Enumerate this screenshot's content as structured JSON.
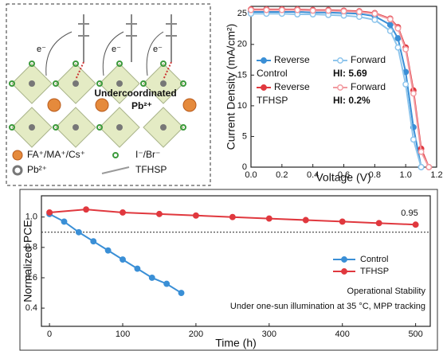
{
  "diagram": {
    "electron_labels": [
      "e⁻",
      "e⁻",
      "e⁻"
    ],
    "callout": "Undercoordinated",
    "callout_ion": "Pb²⁺",
    "legend": [
      "FA⁺/MA⁺/Cs⁺",
      "I⁻/Br⁻",
      "Pb²⁺",
      "TFHSP"
    ]
  },
  "chart_data": [
    {
      "type": "line",
      "x_label": "Voltage (V)",
      "y_label": "Current Density (mA/cm²)",
      "x": [
        0,
        0.1,
        0.2,
        0.3,
        0.4,
        0.5,
        0.6,
        0.7,
        0.8,
        0.9,
        0.95,
        1.0,
        1.05,
        1.1,
        1.15
      ],
      "xlim": [
        0,
        1.2
      ],
      "ylim": [
        0,
        26.2
      ],
      "xticks": [
        {
          "value": 0,
          "label": "0.0"
        },
        0.2,
        0.4,
        0.6,
        0.8,
        {
          "value": 1,
          "label": "1.0"
        },
        1.2
      ],
      "yticks": [
        0,
        5,
        10,
        15,
        20,
        25
      ],
      "series": [
        {
          "name": "Reverse",
          "color": "#3a8fd6",
          "hollow": false,
          "values": [
            25.3,
            25.3,
            25.3,
            25.3,
            25.2,
            25.2,
            25.1,
            25.0,
            24.6,
            23.2,
            21.0,
            15.5,
            6.5,
            0,
            null
          ]
        },
        {
          "name": "Forward",
          "color": "#8ec5ec",
          "hollow": true,
          "values": [
            25.0,
            25.0,
            25.0,
            24.9,
            24.9,
            24.8,
            24.7,
            24.5,
            24.0,
            22.2,
            19.5,
            13.5,
            4.5,
            0,
            null
          ]
        },
        {
          "name": "Reverse",
          "color": "#e0383e",
          "hollow": false,
          "values": [
            25.7,
            25.7,
            25.7,
            25.7,
            25.6,
            25.6,
            25.5,
            25.4,
            25.1,
            24.2,
            22.8,
            19.5,
            12.5,
            3.0,
            0
          ]
        },
        {
          "name": "Forward",
          "color": "#f29aa0",
          "hollow": true,
          "values": [
            25.6,
            25.6,
            25.6,
            25.6,
            25.5,
            25.5,
            25.4,
            25.3,
            25.0,
            24.1,
            22.6,
            19.2,
            12.0,
            2.5,
            0
          ]
        }
      ],
      "legend_groups": [
        {
          "label": "Control",
          "note": "HI: 5.69"
        },
        {
          "label": "TFHSP",
          "note": "HI: 0.2%"
        }
      ]
    },
    {
      "type": "line",
      "x_label": "Time (h)",
      "y_label": "Normalized PCE",
      "xlim": [
        -11,
        520
      ],
      "ylim": [
        0.28,
        1.14
      ],
      "xticks": [
        0,
        100,
        200,
        300,
        400,
        500
      ],
      "yticks": [
        0.4,
        0.6,
        0.8,
        {
          "value": 1,
          "label": "1.0"
        }
      ],
      "reference_line": 0.9,
      "series": [
        {
          "name": "Control",
          "color": "#3a8fd6",
          "hollow": false,
          "x": [
            0,
            20,
            40,
            60,
            80,
            100,
            120,
            140,
            160,
            180
          ],
          "values": [
            1.02,
            0.97,
            0.9,
            0.84,
            0.78,
            0.72,
            0.66,
            0.6,
            0.56,
            0.5
          ]
        },
        {
          "name": "TFHSP",
          "color": "#e0383e",
          "hollow": false,
          "x": [
            0,
            50,
            100,
            150,
            200,
            250,
            300,
            350,
            400,
            450,
            500
          ],
          "values": [
            1.03,
            1.05,
            1.03,
            1.02,
            1.01,
            1.0,
            0.99,
            0.98,
            0.97,
            0.96,
            0.95
          ]
        }
      ],
      "annotations": [
        "0.95",
        "Operational Stability",
        "Under one-sun illumination at 35 °C, MPP tracking"
      ]
    }
  ]
}
